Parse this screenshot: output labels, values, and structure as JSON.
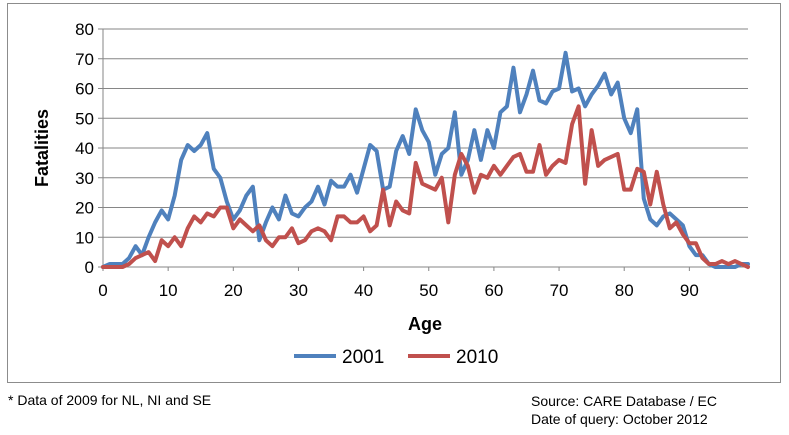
{
  "chart_data": {
    "type": "line",
    "xlabel": "Age",
    "ylabel": "Fatalities",
    "xlim": [
      0,
      99
    ],
    "ylim": [
      0,
      80
    ],
    "x_ticks": [
      0,
      10,
      20,
      30,
      40,
      50,
      60,
      70,
      80,
      90
    ],
    "y_ticks": [
      0,
      10,
      20,
      30,
      40,
      50,
      60,
      70,
      80
    ],
    "grid": "horizontal",
    "legend_position": "bottom",
    "x": [
      0,
      1,
      2,
      3,
      4,
      5,
      6,
      7,
      8,
      9,
      10,
      11,
      12,
      13,
      14,
      15,
      16,
      17,
      18,
      19,
      20,
      21,
      22,
      23,
      24,
      25,
      26,
      27,
      28,
      29,
      30,
      31,
      32,
      33,
      34,
      35,
      36,
      37,
      38,
      39,
      40,
      41,
      42,
      43,
      44,
      45,
      46,
      47,
      48,
      49,
      50,
      51,
      52,
      53,
      54,
      55,
      56,
      57,
      58,
      59,
      60,
      61,
      62,
      63,
      64,
      65,
      66,
      67,
      68,
      69,
      70,
      71,
      72,
      73,
      74,
      75,
      76,
      77,
      78,
      79,
      80,
      81,
      82,
      83,
      84,
      85,
      86,
      87,
      88,
      89,
      90,
      91,
      92,
      93,
      94,
      95,
      96,
      97,
      98,
      99
    ],
    "series": [
      {
        "name": "2001",
        "color": "#4f81bd",
        "values": [
          0,
          1,
          1,
          1,
          3,
          7,
          4,
          10,
          15,
          19,
          16,
          24,
          36,
          41,
          39,
          41,
          45,
          33,
          30,
          22,
          16,
          19,
          24,
          27,
          9,
          15,
          20,
          16,
          24,
          18,
          17,
          20,
          22,
          27,
          21,
          29,
          27,
          27,
          31,
          25,
          33,
          41,
          39,
          26,
          27,
          39,
          44,
          38,
          53,
          46,
          42,
          31,
          38,
          40,
          52,
          31,
          36,
          46,
          36,
          46,
          40,
          52,
          54,
          67,
          52,
          58,
          66,
          56,
          55,
          59,
          60,
          72,
          59,
          60,
          54,
          58,
          61,
          65,
          58,
          62,
          50,
          45,
          53,
          23,
          16,
          14,
          17,
          18,
          16,
          14,
          7,
          4,
          4,
          1,
          0,
          0,
          0,
          0,
          1,
          1
        ]
      },
      {
        "name": "2010",
        "color": "#c0504d",
        "values": [
          0,
          0,
          0,
          0,
          1,
          3,
          4,
          5,
          2,
          9,
          7,
          10,
          7,
          13,
          17,
          15,
          18,
          17,
          20,
          20,
          13,
          16,
          14,
          12,
          14,
          9,
          7,
          10,
          10,
          13,
          8,
          9,
          12,
          13,
          12,
          9,
          17,
          17,
          15,
          15,
          17,
          12,
          14,
          26,
          14,
          22,
          19,
          18,
          35,
          28,
          27,
          26,
          30,
          15,
          31,
          38,
          34,
          25,
          31,
          30,
          34,
          31,
          34,
          37,
          38,
          32,
          32,
          41,
          31,
          34,
          36,
          35,
          48,
          54,
          28,
          46,
          34,
          36,
          37,
          38,
          26,
          26,
          33,
          32,
          21,
          32,
          21,
          13,
          15,
          11,
          8,
          8,
          3,
          1,
          1,
          2,
          1,
          2,
          1,
          0
        ]
      }
    ]
  },
  "footnotes": {
    "left": "* Data of 2009 for NL, NI and SE",
    "right_line1": "Source: CARE Database / EC",
    "right_line2": "Date of query: October 2012"
  }
}
